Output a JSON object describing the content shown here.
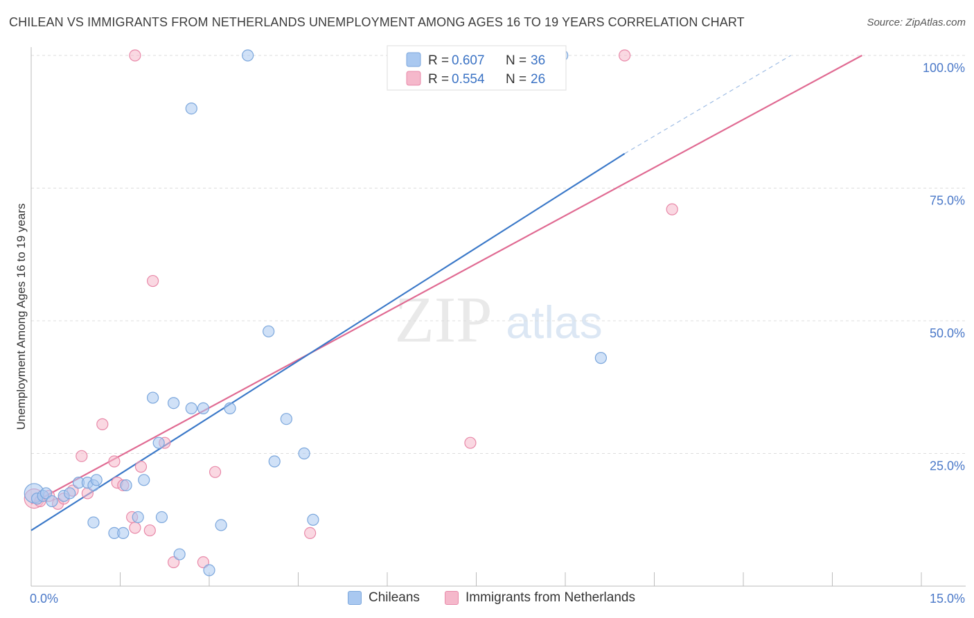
{
  "header": {
    "title": "CHILEAN VS IMMIGRANTS FROM NETHERLANDS UNEMPLOYMENT AMONG AGES 16 TO 19 YEARS CORRELATION CHART",
    "source": "Source: ZipAtlas.com"
  },
  "watermark": {
    "zip": "ZIP",
    "atlas": "atlas"
  },
  "colors": {
    "blue_fill": "#a9c8f0",
    "blue_stroke": "#7aa6dc",
    "blue_line": "#3a78c8",
    "pink_fill": "#f5b8cb",
    "pink_stroke": "#e888a8",
    "pink_line": "#e06a92",
    "tick_label": "#4a78c8",
    "grid": "#dddddd"
  },
  "legend_box": {
    "rows": [
      {
        "r_label": "R =",
        "r_value": "0.607",
        "n_label": "N =",
        "n_value": "36"
      },
      {
        "r_label": "R =",
        "r_value": "0.554",
        "n_label": "N =",
        "n_value": "26"
      }
    ]
  },
  "bottom_legend": {
    "items": [
      {
        "label": "Chileans"
      },
      {
        "label": "Immigrants from Netherlands"
      }
    ]
  },
  "chart_data": {
    "type": "scatter",
    "title": "CHILEAN VS IMMIGRANTS FROM NETHERLANDS UNEMPLOYMENT AMONG AGES 16 TO 19 YEARS CORRELATION CHART",
    "xlabel": "",
    "ylabel": "Unemployment Among Ages 16 to 19 years",
    "xlim": [
      0,
      15
    ],
    "ylim": [
      0,
      100
    ],
    "x_tick_labels": [
      "0.0%",
      "15.0%"
    ],
    "y_tick_labels": [
      "100.0%",
      "75.0%",
      "50.0%",
      "25.0%"
    ],
    "y_ticks": [
      100,
      75,
      50,
      25
    ],
    "grid": true,
    "legend_position": "top-center",
    "series": [
      {
        "name": "Chileans",
        "R": 0.607,
        "N": 36,
        "points": [
          [
            0.05,
            17.5
          ],
          [
            0.1,
            16.5
          ],
          [
            0.2,
            17.0
          ],
          [
            0.25,
            17.5
          ],
          [
            0.35,
            16.0
          ],
          [
            0.55,
            17.0
          ],
          [
            0.65,
            17.5
          ],
          [
            0.8,
            19.5
          ],
          [
            0.95,
            19.5
          ],
          [
            1.05,
            19.0
          ],
          [
            1.1,
            20.0
          ],
          [
            1.05,
            12.0
          ],
          [
            1.4,
            10.0
          ],
          [
            1.55,
            10.0
          ],
          [
            1.6,
            19.0
          ],
          [
            1.8,
            13.0
          ],
          [
            1.9,
            20.0
          ],
          [
            2.05,
            35.5
          ],
          [
            2.15,
            27.0
          ],
          [
            2.2,
            13.0
          ],
          [
            2.4,
            34.5
          ],
          [
            2.5,
            6.0
          ],
          [
            2.7,
            33.5
          ],
          [
            2.9,
            33.5
          ],
          [
            2.7,
            90.0
          ],
          [
            3.0,
            3.0
          ],
          [
            3.2,
            11.5
          ],
          [
            3.35,
            33.5
          ],
          [
            3.65,
            100.0
          ],
          [
            4.0,
            48.0
          ],
          [
            4.1,
            23.5
          ],
          [
            4.3,
            31.5
          ],
          [
            4.6,
            25.0
          ],
          [
            4.75,
            12.5
          ],
          [
            8.95,
            100.0
          ],
          [
            9.6,
            43.0
          ]
        ]
      },
      {
        "name": "Immigrants from Netherlands",
        "R": 0.554,
        "N": 26,
        "points": [
          [
            0.05,
            16.5
          ],
          [
            0.15,
            16.0
          ],
          [
            0.3,
            17.0
          ],
          [
            0.45,
            15.5
          ],
          [
            0.55,
            16.5
          ],
          [
            0.7,
            18.0
          ],
          [
            0.85,
            24.5
          ],
          [
            0.95,
            17.5
          ],
          [
            1.2,
            30.5
          ],
          [
            1.4,
            23.5
          ],
          [
            1.45,
            19.5
          ],
          [
            1.55,
            19.0
          ],
          [
            1.7,
            13.0
          ],
          [
            1.75,
            11.0
          ],
          [
            1.85,
            22.5
          ],
          [
            1.75,
            100.0
          ],
          [
            2.0,
            10.5
          ],
          [
            2.05,
            57.5
          ],
          [
            2.25,
            27.0
          ],
          [
            2.4,
            4.5
          ],
          [
            2.9,
            4.5
          ],
          [
            3.1,
            21.5
          ],
          [
            4.7,
            10.0
          ],
          [
            7.4,
            27.0
          ],
          [
            10.0,
            100.0
          ],
          [
            10.8,
            71.0
          ]
        ]
      }
    ],
    "trend_lines": [
      {
        "series": "Chileans",
        "x": [
          0,
          10.0
        ],
        "y": [
          10.5,
          81.5
        ],
        "dashed_extension": {
          "x": [
            10.0,
            12.8
          ],
          "y": [
            81.5,
            100.0
          ]
        }
      },
      {
        "series": "Immigrants from Netherlands",
        "x": [
          0,
          14.0
        ],
        "y": [
          15.5,
          100.0
        ]
      }
    ]
  }
}
